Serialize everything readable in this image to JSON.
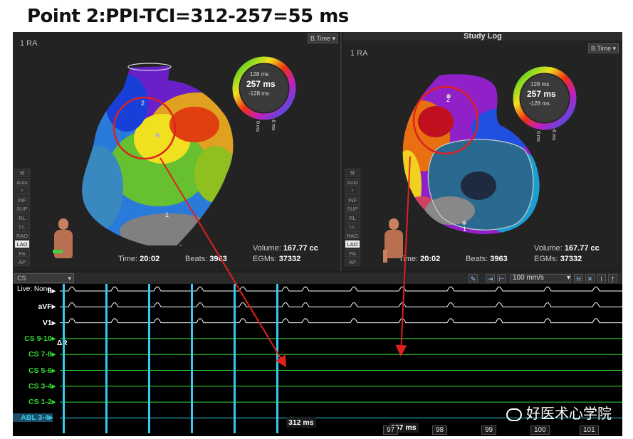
{
  "title": "Point 2:PPI-TCI=312-257=55 ms",
  "left_panel": {
    "map_label": "1 RA",
    "dropdown": "B.Time",
    "legend": {
      "top": "128 ms",
      "center": "257 ms",
      "bottom": "-128 ms",
      "left_tick": "0 ms",
      "right_tick": "-6 ms"
    },
    "time_label": "Time:",
    "time_value": "20:02",
    "beats_label": "Beats:",
    "beats_value": "3963",
    "volume_label": "Volume:",
    "volume_value": "167.77 cc",
    "egms_label": "EGMs:",
    "egms_value": "37332",
    "point_labels": [
      "2",
      "1"
    ]
  },
  "right_panel": {
    "panel_title": "Study Log",
    "map_label": "1 RA",
    "dropdown": "B.Time",
    "legend": {
      "top": "128 ms",
      "center": "257 ms",
      "bottom": "-128 ms",
      "left_tick": "0 ms",
      "right_tick": "-6 ms"
    },
    "time_label": "Time:",
    "time_value": "20:02",
    "beats_label": "Beats:",
    "beats_value": "3963",
    "volume_label": "Volume:",
    "volume_value": "167.77 cc",
    "egms_label": "EGMs:",
    "egms_value": "37332",
    "point_labels": [
      "2",
      "1"
    ]
  },
  "view_tools": [
    "Auto",
    "*",
    "INF",
    "SUP",
    "RL",
    "LL",
    "RAO",
    "LAO",
    "PA",
    "AP"
  ],
  "view_tools_selected_index": 7,
  "trace": {
    "source_dropdown": "CS",
    "live_label": "Live: None",
    "speed": "100 mm/s",
    "channels": [
      {
        "name": "II",
        "color": "#ffffff"
      },
      {
        "name": "aVF",
        "color": "#ffffff"
      },
      {
        "name": "V1",
        "color": "#ffffff"
      },
      {
        "name": "CS 9-10",
        "color": "#33dd33"
      },
      {
        "name": "CS 7-8",
        "color": "#33dd33"
      },
      {
        "name": "CS 5-6",
        "color": "#33dd33"
      },
      {
        "name": "CS 3-4",
        "color": "#33dd33"
      },
      {
        "name": "CS 1-2",
        "color": "#33dd33"
      },
      {
        "name": "ABL 3-4",
        "color": "#33ccee"
      }
    ],
    "delta_r_label": "ΔR",
    "measure_ppi": "312 ms",
    "measure_tci": "257 ms",
    "beat_numbers": [
      "97",
      "98",
      "99",
      "100",
      "101"
    ]
  },
  "watermark": "好医术心学院",
  "colors": {
    "ecg": "#ffffff",
    "cs": "#33dd33",
    "abl": "#33ccee",
    "arrow": "#e02020",
    "circle": "#e02020"
  }
}
